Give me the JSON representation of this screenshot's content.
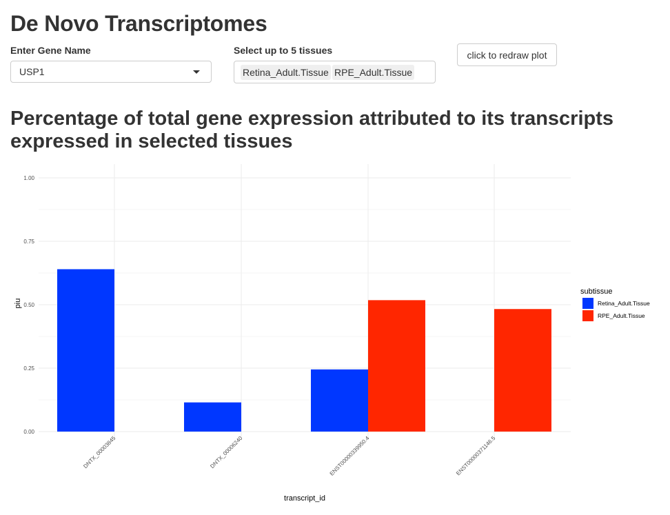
{
  "header": {
    "title": "De Novo Transcriptomes"
  },
  "controls": {
    "gene_label": "Enter Gene Name",
    "gene_value": "USP1",
    "tissue_label": "Select up to 5 tissues",
    "tissues_selected": [
      "Retina_Adult.Tissue",
      "RPE_Adult.Tissue"
    ],
    "redraw_label": "click to redraw plot"
  },
  "plot": {
    "heading": "Percentage of total gene expression attributed to its transcripts expressed in selected tissues"
  },
  "chart_data": {
    "type": "bar",
    "categories": [
      "DNTX_00003845",
      "DNTX_00006240",
      "ENST00000339950.4",
      "ENST00000371146.5"
    ],
    "series": [
      {
        "name": "Retina_Adult.Tissue",
        "color": "#0037ff",
        "values": [
          0.64,
          0.115,
          0.245,
          null
        ]
      },
      {
        "name": "RPE_Adult.Tissue",
        "color": "#ff2600",
        "values": [
          null,
          null,
          0.518,
          0.483
        ]
      }
    ],
    "xlabel": "transcript_id",
    "ylabel": "piu",
    "ylim": [
      0,
      1.05
    ],
    "yticks": [
      0.0,
      0.25,
      0.5,
      0.75,
      1.0
    ],
    "ytick_labels": [
      "0.00",
      "0.25",
      "0.50",
      "0.75",
      "1.00"
    ],
    "legend_title": "subtissue",
    "legend_position": "right",
    "grid": true
  }
}
